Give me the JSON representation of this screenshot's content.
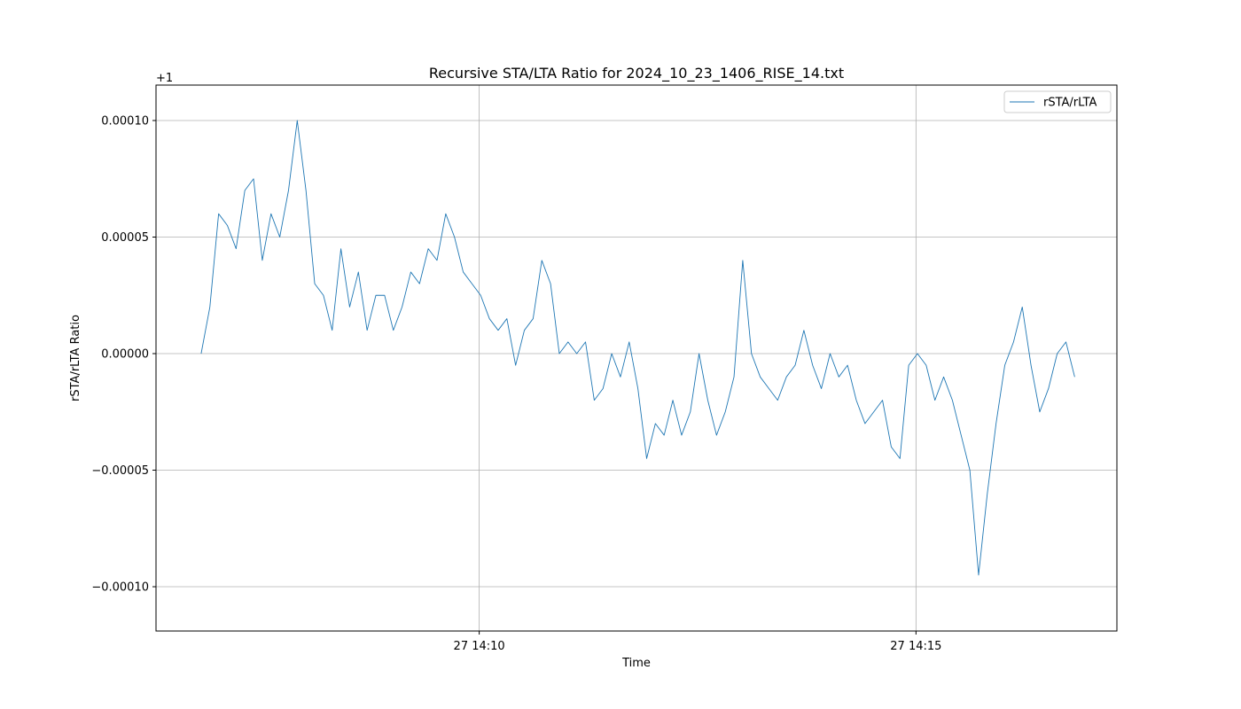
{
  "chart_data": {
    "type": "line",
    "title": "Recursive STA/LTA Ratio for 2024_10_23_1406_RISE_14.txt",
    "xlabel": "Time",
    "ylabel": "rSTA/rLTA Ratio",
    "y_offset_label": "+1",
    "x": [
      "27 14:06:49",
      "27 14:06:55",
      "27 14:07:01",
      "27 14:07:07",
      "27 14:07:13",
      "27 14:07:19",
      "27 14:07:25",
      "27 14:07:31",
      "27 14:07:37",
      "27 14:07:43",
      "27 14:07:49",
      "27 14:07:55",
      "27 14:08:01",
      "27 14:08:07",
      "27 14:08:13",
      "27 14:08:19",
      "27 14:08:25",
      "27 14:08:31",
      "27 14:08:37",
      "27 14:08:43",
      "27 14:08:49",
      "27 14:08:55",
      "27 14:09:01",
      "27 14:09:07",
      "27 14:09:13",
      "27 14:09:19",
      "27 14:09:25",
      "27 14:09:31",
      "27 14:09:37",
      "27 14:09:43",
      "27 14:09:49",
      "27 14:09:55",
      "27 14:10:01",
      "27 14:10:07",
      "27 14:10:13",
      "27 14:10:19",
      "27 14:10:25",
      "27 14:10:31",
      "27 14:10:37",
      "27 14:10:43",
      "27 14:10:49",
      "27 14:10:55",
      "27 14:11:01",
      "27 14:11:07",
      "27 14:11:13",
      "27 14:11:19",
      "27 14:11:25",
      "27 14:11:31",
      "27 14:11:37",
      "27 14:11:43",
      "27 14:11:49",
      "27 14:11:55",
      "27 14:12:01",
      "27 14:12:07",
      "27 14:12:13",
      "27 14:12:19",
      "27 14:12:25",
      "27 14:12:31",
      "27 14:12:37",
      "27 14:12:43",
      "27 14:12:49",
      "27 14:12:55",
      "27 14:13:01",
      "27 14:13:07",
      "27 14:13:13",
      "27 14:13:19",
      "27 14:13:25",
      "27 14:13:31",
      "27 14:13:37",
      "27 14:13:43",
      "27 14:13:49",
      "27 14:13:55",
      "27 14:14:01",
      "27 14:14:07",
      "27 14:14:13",
      "27 14:14:19",
      "27 14:14:25",
      "27 14:14:31",
      "27 14:14:37",
      "27 14:14:43",
      "27 14:14:49",
      "27 14:14:55",
      "27 14:15:01",
      "27 14:15:07",
      "27 14:15:13",
      "27 14:15:19",
      "27 14:15:25",
      "27 14:15:31",
      "27 14:15:37",
      "27 14:15:43",
      "27 14:15:49",
      "27 14:15:55",
      "27 14:16:01",
      "27 14:16:07",
      "27 14:16:13",
      "27 14:16:19",
      "27 14:16:25",
      "27 14:16:31",
      "27 14:16:37",
      "27 14:16:43",
      "27 14:16:49"
    ],
    "series": [
      {
        "name": "rSTA/rLTA",
        "color": "#1f77b4",
        "values": [
          0,
          2e-05,
          6e-05,
          5.5e-05,
          4.5e-05,
          7e-05,
          7.5e-05,
          4e-05,
          6e-05,
          5e-05,
          7e-05,
          0.0001,
          7e-05,
          3e-05,
          2.5e-05,
          1e-05,
          4.5e-05,
          2e-05,
          3.5e-05,
          1e-05,
          2.5e-05,
          2.5e-05,
          1e-05,
          2e-05,
          3.5e-05,
          3e-05,
          4.5e-05,
          4e-05,
          6e-05,
          5e-05,
          3.5e-05,
          3e-05,
          2.5e-05,
          1.5e-05,
          1e-05,
          1.5e-05,
          -5e-06,
          1e-05,
          1.5e-05,
          4e-05,
          3e-05,
          0,
          5e-06,
          0,
          5e-06,
          -2e-05,
          -1.5e-05,
          0,
          -1e-05,
          5e-06,
          -1.5e-05,
          -4.5e-05,
          -3e-05,
          -3.5e-05,
          -2e-05,
          -3.5e-05,
          -2.5e-05,
          0,
          -2e-05,
          -3.5e-05,
          -2.5e-05,
          -1e-05,
          4e-05,
          0,
          -1e-05,
          -1.5e-05,
          -2e-05,
          -1e-05,
          -5e-06,
          1e-05,
          -5e-06,
          -1.5e-05,
          0,
          -1e-05,
          -5e-06,
          -2e-05,
          -3e-05,
          -2.5e-05,
          -2e-05,
          -4e-05,
          -4.5e-05,
          -5e-06,
          0,
          -5e-06,
          -2e-05,
          -1e-05,
          -2e-05,
          -3.5e-05,
          -5e-05,
          -9.5e-05,
          -6e-05,
          -3e-05,
          -5e-06,
          5e-06,
          2e-05,
          -5e-06,
          -2.5e-05,
          -1.5e-05,
          0,
          5e-06,
          -1e-05
        ]
      }
    ],
    "xlim": [
      "27 14:06:18",
      "27 14:17:18"
    ],
    "xticks": [
      {
        "value": "27 14:10:00",
        "label": "27 14:10"
      },
      {
        "value": "27 14:15:00",
        "label": "27 14:15"
      }
    ],
    "ylim": [
      -0.000119,
      0.0001152
    ],
    "yticks": [
      {
        "value": -0.0001,
        "label": "−0.00010"
      },
      {
        "value": -5e-05,
        "label": "−0.00005"
      },
      {
        "value": 0,
        "label": "0.00000"
      },
      {
        "value": 5e-05,
        "label": "0.00005"
      },
      {
        "value": 0.0001,
        "label": "0.00010"
      }
    ],
    "grid": true,
    "legend": "upper right"
  }
}
